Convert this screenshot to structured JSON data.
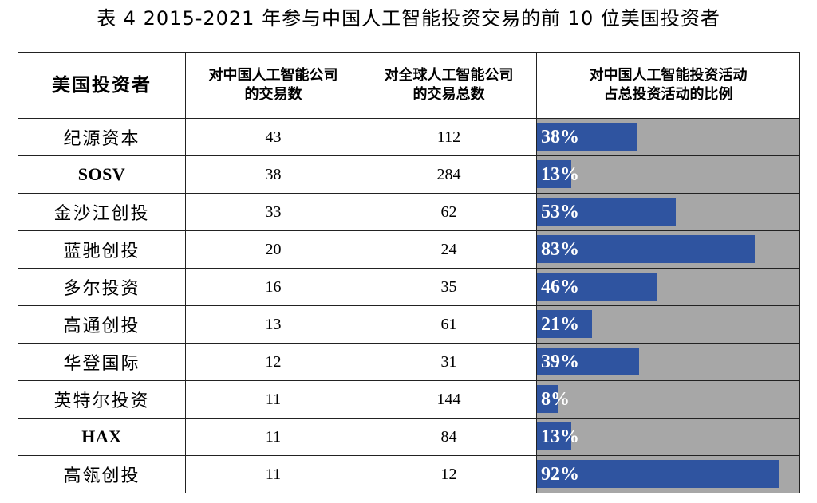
{
  "title": "表 4 2015-2021 年参与中国人工智能投资交易的前 10 位美国投资者",
  "headers": {
    "investor": "美国投资者",
    "china_deals_line1": "对中国人工智能公司",
    "china_deals_line2": "的交易数",
    "global_deals_line1": "对全球人工智能公司",
    "global_deals_line2": "的交易总数",
    "ratio_line1": "对中国人工智能投资活动",
    "ratio_line2": "占总投资活动的比例"
  },
  "colors": {
    "bar": "#2f54a0",
    "bar_track": "#a7a7a7"
  },
  "chart_data": {
    "type": "table",
    "title": "表 4 2015-2021 年参与中国人工智能投资交易的前 10 位美国投资者",
    "columns": [
      "美国投资者",
      "对中国人工智能公司的交易数",
      "对全球人工智能公司的交易总数",
      "对中国人工智能投资活动占总投资活动的比例"
    ],
    "rows": [
      {
        "investor": "纪源资本",
        "china_deals": "43",
        "global_deals": "112",
        "share": 38,
        "share_label": "38%"
      },
      {
        "investor": "SOSV",
        "china_deals": "38",
        "global_deals": "284",
        "share": 13,
        "share_label": "13%"
      },
      {
        "investor": "金沙江创投",
        "china_deals": "33",
        "global_deals": "62",
        "share": 53,
        "share_label": "53%"
      },
      {
        "investor": "蓝驰创投",
        "china_deals": "20",
        "global_deals": "24",
        "share": 83,
        "share_label": "83%"
      },
      {
        "investor": "多尔投资",
        "china_deals": "16",
        "global_deals": "35",
        "share": 46,
        "share_label": "46%"
      },
      {
        "investor": "高通创投",
        "china_deals": "13",
        "global_deals": "61",
        "share": 21,
        "share_label": "21%"
      },
      {
        "investor": "华登国际",
        "china_deals": "12",
        "global_deals": "31",
        "share": 39,
        "share_label": "39%"
      },
      {
        "investor": "英特尔投资",
        "china_deals": "11",
        "global_deals": "144",
        "share": 8,
        "share_label": "8%"
      },
      {
        "investor": "HAX",
        "china_deals": "11",
        "global_deals": "84",
        "share": 13,
        "share_label": "13%"
      },
      {
        "investor": "高瓴创投",
        "china_deals": "11",
        "global_deals": "12",
        "share": 92,
        "share_label": "92%"
      }
    ]
  }
}
